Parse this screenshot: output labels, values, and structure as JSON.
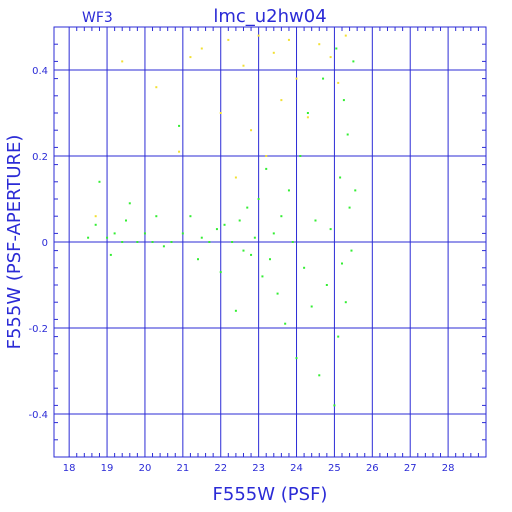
{
  "chart_data": {
    "type": "scatter",
    "title": "lmc_u2hw04",
    "panel_label": "WF3",
    "xlabel": "F555W (PSF)",
    "ylabel": "F555W (PSF-APERTURE)",
    "xlim": [
      17.6,
      29.0
    ],
    "ylim": [
      -0.5,
      0.5
    ],
    "x_ticks": [
      18,
      19,
      20,
      21,
      22,
      23,
      24,
      25,
      26,
      27,
      28
    ],
    "y_ticks": [
      -0.4,
      -0.2,
      0,
      0.2,
      0.4
    ],
    "y_tick_labels": [
      "-0.4",
      "-0.2",
      "0",
      "0.2",
      "0.4"
    ],
    "grid": true,
    "colors": {
      "axes": "#2b2bd6",
      "grid": "#2b2bd6",
      "series_main": "#33ee33",
      "series_rejected": "#f2e033"
    },
    "series": [
      {
        "color_key": "series_main",
        "points": [
          [
            18.5,
            0.01
          ],
          [
            18.7,
            0.04
          ],
          [
            18.8,
            0.14
          ],
          [
            19.0,
            0.01
          ],
          [
            19.1,
            -0.03
          ],
          [
            19.2,
            0.02
          ],
          [
            19.4,
            0.0
          ],
          [
            19.5,
            0.05
          ],
          [
            19.6,
            0.09
          ],
          [
            19.8,
            0.0
          ],
          [
            20.0,
            0.02
          ],
          [
            20.2,
            0.0
          ],
          [
            20.3,
            0.06
          ],
          [
            20.5,
            -0.01
          ],
          [
            20.7,
            0.0
          ],
          [
            20.9,
            0.27
          ],
          [
            21.0,
            0.02
          ],
          [
            21.2,
            0.06
          ],
          [
            21.4,
            -0.04
          ],
          [
            21.5,
            0.01
          ],
          [
            21.7,
            0.0
          ],
          [
            21.9,
            0.03
          ],
          [
            22.0,
            -0.07
          ],
          [
            22.1,
            0.04
          ],
          [
            22.3,
            0.0
          ],
          [
            22.4,
            -0.16
          ],
          [
            22.5,
            0.05
          ],
          [
            22.6,
            -0.02
          ],
          [
            22.7,
            0.08
          ],
          [
            22.8,
            -0.03
          ],
          [
            22.9,
            0.01
          ],
          [
            23.0,
            0.1
          ],
          [
            23.1,
            -0.08
          ],
          [
            23.2,
            0.17
          ],
          [
            23.3,
            -0.04
          ],
          [
            23.4,
            0.02
          ],
          [
            23.5,
            -0.12
          ],
          [
            23.6,
            0.06
          ],
          [
            23.7,
            -0.19
          ],
          [
            23.8,
            0.12
          ],
          [
            23.9,
            0.0
          ],
          [
            24.0,
            -0.27
          ],
          [
            24.1,
            0.2
          ],
          [
            24.2,
            -0.06
          ],
          [
            24.3,
            0.3
          ],
          [
            24.4,
            -0.15
          ],
          [
            24.5,
            0.05
          ],
          [
            24.6,
            -0.31
          ],
          [
            24.7,
            0.38
          ],
          [
            24.8,
            -0.1
          ],
          [
            24.9,
            0.03
          ],
          [
            25.0,
            -0.38
          ],
          [
            25.05,
            0.45
          ],
          [
            25.1,
            -0.22
          ],
          [
            25.15,
            0.15
          ],
          [
            25.2,
            -0.05
          ],
          [
            25.25,
            0.33
          ],
          [
            25.3,
            -0.14
          ],
          [
            25.35,
            0.25
          ],
          [
            25.4,
            0.08
          ],
          [
            25.45,
            -0.02
          ],
          [
            25.5,
            0.42
          ],
          [
            25.55,
            0.12
          ]
        ]
      },
      {
        "color_key": "series_rejected",
        "points": [
          [
            18.7,
            0.06
          ],
          [
            19.4,
            0.42
          ],
          [
            20.3,
            0.36
          ],
          [
            20.9,
            0.21
          ],
          [
            21.2,
            0.43
          ],
          [
            21.5,
            0.45
          ],
          [
            22.0,
            0.3
          ],
          [
            22.2,
            0.47
          ],
          [
            22.4,
            0.15
          ],
          [
            22.6,
            0.41
          ],
          [
            22.8,
            0.26
          ],
          [
            23.0,
            0.48
          ],
          [
            23.2,
            0.2
          ],
          [
            23.4,
            0.44
          ],
          [
            23.6,
            0.33
          ],
          [
            23.8,
            0.47
          ],
          [
            24.0,
            0.38
          ],
          [
            24.3,
            0.29
          ],
          [
            24.6,
            0.46
          ],
          [
            24.9,
            0.43
          ],
          [
            25.1,
            0.37
          ],
          [
            25.3,
            0.48
          ]
        ]
      }
    ]
  }
}
